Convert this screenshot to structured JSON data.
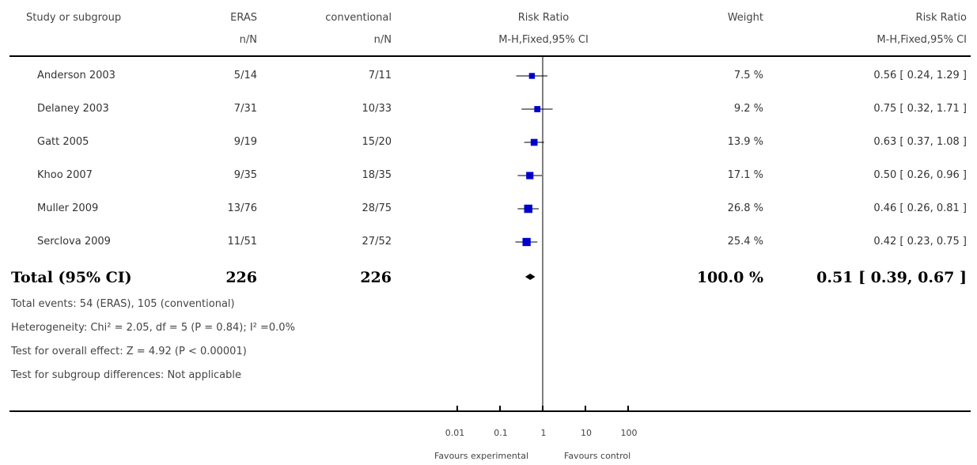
{
  "headers": {
    "study": "Study or subgroup",
    "exp": "ERAS",
    "exp_sub": "n/N",
    "ctl": "conventional",
    "ctl_sub": "n/N",
    "plot": "Risk Ratio",
    "plot_sub": "M-H,Fixed,95% CI",
    "weight": "Weight",
    "rr": "Risk Ratio",
    "rr_sub": "M-H,Fixed,95% CI"
  },
  "rows": [
    {
      "study": "Anderson 2003",
      "exp": "5/14",
      "ctl": "7/11",
      "weight": "7.5 %",
      "ci": "0.56 [ 0.24, 1.29 ]"
    },
    {
      "study": "Delaney 2003",
      "exp": "7/31",
      "ctl": "10/33",
      "weight": "9.2 %",
      "ci": "0.75 [ 0.32, 1.71 ]"
    },
    {
      "study": "Gatt 2005",
      "exp": "9/19",
      "ctl": "15/20",
      "weight": "13.9 %",
      "ci": "0.63 [ 0.37, 1.08 ]"
    },
    {
      "study": "Khoo 2007",
      "exp": "9/35",
      "ctl": "18/35",
      "weight": "17.1 %",
      "ci": "0.50 [ 0.26, 0.96 ]"
    },
    {
      "study": "Muller 2009",
      "exp": "13/76",
      "ctl": "28/75",
      "weight": "26.8 %",
      "ci": "0.46 [ 0.26, 0.81 ]"
    },
    {
      "study": "Serclova 2009",
      "exp": "11/51",
      "ctl": "27/52",
      "weight": "25.4 %",
      "ci": "0.42 [ 0.23, 0.75 ]"
    }
  ],
  "total": {
    "study": "Total (95% CI)",
    "exp": "226",
    "ctl": "226",
    "weight": "100.0 %",
    "ci": "0.51 [ 0.39, 0.67 ]"
  },
  "footnotes": {
    "events": "Total events: 54 (ERAS), 105 (conventional)",
    "heterogeneity": "Heterogeneity: Chi² = 2.05, df = 5 (P = 0.84); I² =0.0%",
    "overall": "Test for overall effect: Z = 4.92 (P < 0.00001)",
    "subgroup": "Test for subgroup differences: Not applicable"
  },
  "axis": {
    "ticks": [
      "0.01",
      "0.1",
      "1",
      "10",
      "100"
    ],
    "favours_left": "Favours experimental",
    "favours_right": "Favours control"
  },
  "colors": {
    "marker": "#0000cc",
    "diamond": "#000000",
    "line": "#000000"
  },
  "chart_data": {
    "type": "forest",
    "scale": "log",
    "xlim": [
      0.01,
      100
    ],
    "ticks": [
      0.01,
      0.1,
      1,
      10,
      100
    ],
    "studies": [
      {
        "name": "Anderson 2003",
        "rr": 0.56,
        "lo": 0.24,
        "hi": 1.29,
        "weight": 7.5
      },
      {
        "name": "Delaney 2003",
        "rr": 0.75,
        "lo": 0.32,
        "hi": 1.71,
        "weight": 9.2
      },
      {
        "name": "Gatt 2005",
        "rr": 0.63,
        "lo": 0.37,
        "hi": 1.08,
        "weight": 13.9
      },
      {
        "name": "Khoo 2007",
        "rr": 0.5,
        "lo": 0.26,
        "hi": 0.96,
        "weight": 17.1
      },
      {
        "name": "Muller 2009",
        "rr": 0.46,
        "lo": 0.26,
        "hi": 0.81,
        "weight": 26.8
      },
      {
        "name": "Serclova 2009",
        "rr": 0.42,
        "lo": 0.23,
        "hi": 0.75,
        "weight": 25.4
      }
    ],
    "pooled": {
      "rr": 0.51,
      "lo": 0.39,
      "hi": 0.67,
      "weight": 100.0
    }
  }
}
